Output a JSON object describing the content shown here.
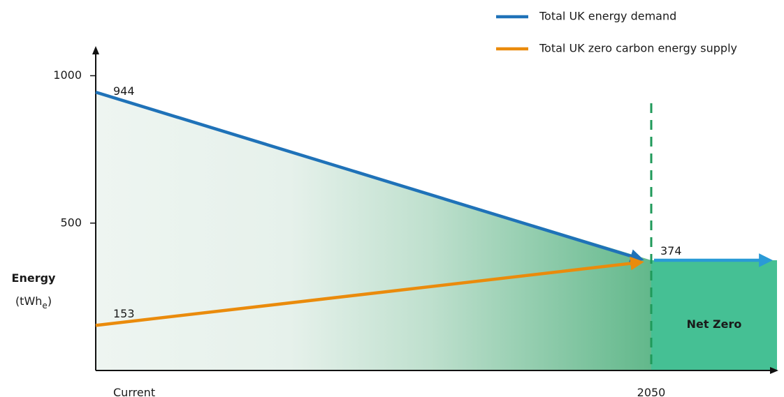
{
  "chart_data": {
    "type": "line",
    "x_categories": [
      "Current",
      "2050"
    ],
    "ylabel": "Energy",
    "yunit": {
      "base": "(tWh",
      "subscript": "e",
      "close": ")"
    },
    "yticks": [
      500,
      1000
    ],
    "ylim": [
      0,
      1000
    ],
    "series": [
      {
        "name": "Total UK energy demand",
        "color": "#1f72b8",
        "start": 944,
        "end": 374,
        "after_2050": 374,
        "after_color": "#2a9ad6"
      },
      {
        "name": "Total UK zero carbon energy supply",
        "color": "#ea8b0c",
        "start": 153,
        "end": 374
      }
    ],
    "labels": {
      "demand_start": "944",
      "supply_start": "153",
      "end_value": "374"
    },
    "annotations": {
      "net_zero": "Net Zero"
    },
    "markers": {
      "x": "2050",
      "style": "dashed",
      "color": "#1f9a5a"
    },
    "legend_position": "top-right",
    "gradient_colors": {
      "light": "#eef4f0",
      "dark": "#62b88b",
      "net_zero": "#45c094"
    }
  }
}
